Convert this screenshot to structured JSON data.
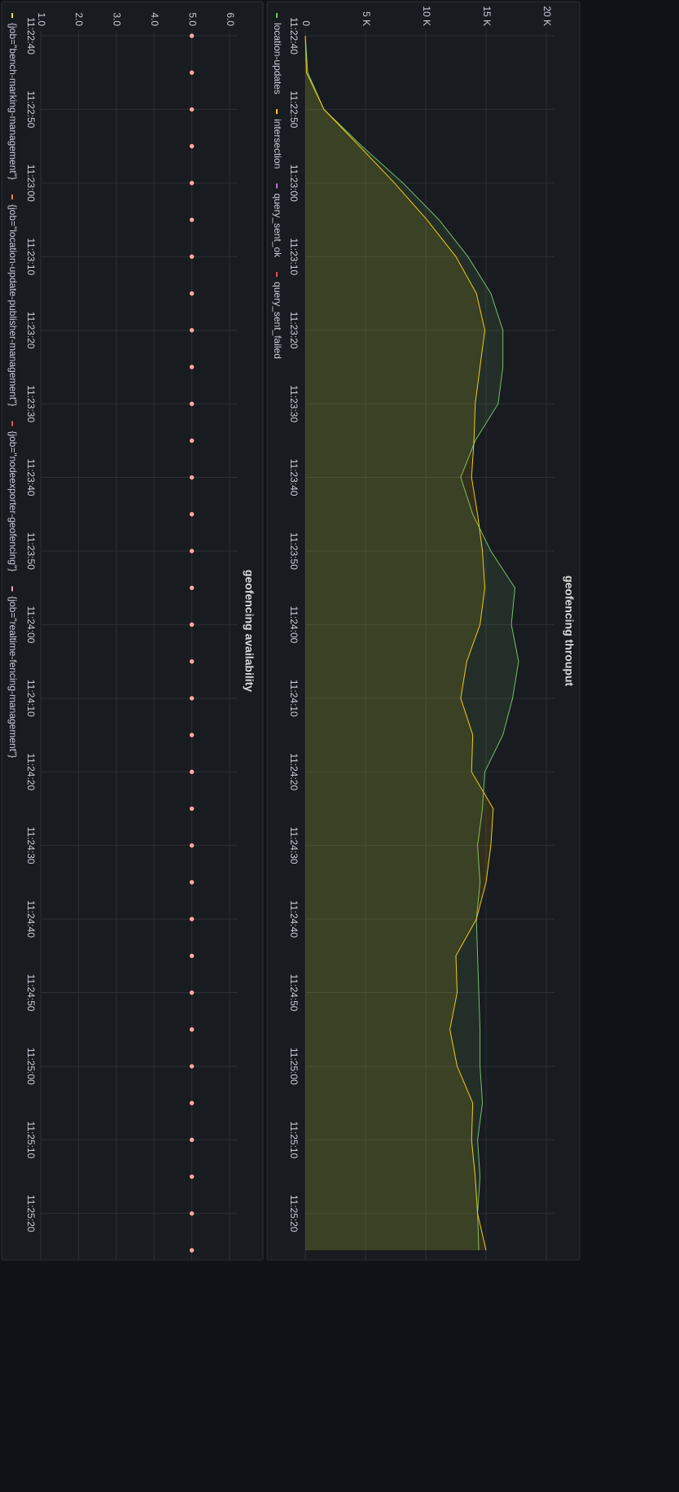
{
  "chart_data": [
    {
      "type": "area",
      "title": "geofencing throuput",
      "x": [
        "11:22:40",
        "11:22:45",
        "11:22:50",
        "11:22:55",
        "11:23:00",
        "11:23:05",
        "11:23:10",
        "11:23:15",
        "11:23:20",
        "11:23:25",
        "11:23:30",
        "11:23:35",
        "11:23:40",
        "11:23:45",
        "11:23:50",
        "11:23:55",
        "11:24:00",
        "11:24:05",
        "11:24:10",
        "11:24:15",
        "11:24:20",
        "11:24:25",
        "11:24:30",
        "11:24:35",
        "11:24:40",
        "11:24:45",
        "11:24:50",
        "11:24:55",
        "11:25:00",
        "11:25:05",
        "11:25:10",
        "11:25:15",
        "11:25:20",
        "11:25:25"
      ],
      "series": [
        {
          "name": "location-updates",
          "color": "#73bf69",
          "values": [
            0,
            200,
            1550,
            4700,
            8100,
            11100,
            13500,
            15400,
            16400,
            16400,
            16000,
            14100,
            12900,
            13900,
            15400,
            17400,
            17100,
            17700,
            17200,
            16400,
            14900,
            14700,
            14300,
            14500,
            14200,
            14300,
            14400,
            14500,
            14500,
            14700,
            14300,
            14500,
            14300,
            14400
          ]
        },
        {
          "name": "intersection",
          "color": "#f2cc0c",
          "values": [
            0,
            100,
            1550,
            4500,
            7400,
            10100,
            12500,
            14200,
            14900,
            14500,
            14100,
            14000,
            13800,
            14300,
            14700,
            14900,
            14500,
            13400,
            12900,
            13900,
            13800,
            15600,
            15400,
            15000,
            14200,
            12500,
            12600,
            12000,
            12600,
            13900,
            13800,
            14100,
            14300,
            15000
          ]
        },
        {
          "name": "query_sent_ok",
          "color": "#b877d9",
          "values": [
            null,
            null,
            null,
            null,
            null,
            null,
            null,
            null,
            null,
            null,
            null,
            null,
            null,
            null,
            null,
            null,
            null,
            null,
            null,
            null,
            null,
            null,
            null,
            null,
            null,
            null,
            null,
            null,
            null,
            null,
            null,
            null,
            null,
            null
          ]
        },
        {
          "name": "query_sent_failed",
          "color": "#f2495c",
          "values": [
            null,
            null,
            null,
            null,
            null,
            null,
            null,
            null,
            null,
            null,
            null,
            null,
            null,
            null,
            null,
            null,
            null,
            null,
            null,
            null,
            null,
            null,
            null,
            null,
            null,
            null,
            null,
            null,
            null,
            null,
            null,
            null,
            null,
            null
          ]
        }
      ],
      "xlim": [
        "11:22:40",
        "11:25:25"
      ],
      "xticks": [
        "11:22:40",
        "11:22:50",
        "11:23:00",
        "11:23:10",
        "11:23:20",
        "11:23:30",
        "11:23:40",
        "11:23:50",
        "11:24:00",
        "11:24:10",
        "11:24:20",
        "11:24:30",
        "11:24:40",
        "11:24:50",
        "11:25:00",
        "11:25:10",
        "11:25:20"
      ],
      "ylim": [
        0,
        20000
      ],
      "yticks": [
        0,
        {
          "value": 5000,
          "label": "5 K"
        },
        {
          "value": 10000,
          "label": "10 K"
        },
        {
          "value": 15000,
          "label": "15 K"
        },
        {
          "value": 20000,
          "label": "20 K"
        }
      ],
      "grid": true
    },
    {
      "type": "scatter",
      "title": "geofencing availability",
      "x": [
        "11:22:40",
        "11:22:45",
        "11:22:50",
        "11:22:55",
        "11:23:00",
        "11:23:05",
        "11:23:10",
        "11:23:15",
        "11:23:20",
        "11:23:25",
        "11:23:30",
        "11:23:35",
        "11:23:40",
        "11:23:45",
        "11:23:50",
        "11:23:55",
        "11:24:00",
        "11:24:05",
        "11:24:10",
        "11:24:15",
        "11:24:20",
        "11:24:25",
        "11:24:30",
        "11:24:35",
        "11:24:40",
        "11:24:45",
        "11:24:50",
        "11:24:55",
        "11:25:00",
        "11:25:05",
        "11:25:10",
        "11:25:15",
        "11:25:20",
        "11:25:25"
      ],
      "series": [
        {
          "name": "{job=\"bench-marking-management\"}",
          "color": "#fade2a",
          "values": [
            5,
            5,
            5,
            5,
            5,
            5,
            5,
            5,
            5,
            5,
            5,
            5,
            5,
            5,
            5,
            5,
            5,
            5,
            5,
            5,
            5,
            5,
            5,
            5,
            5,
            5,
            5,
            5,
            5,
            5,
            5,
            5,
            5,
            5
          ]
        },
        {
          "name": "{job=\"location-update-publisher-management\"}",
          "color": "#ff7a45",
          "values": [
            5,
            5,
            5,
            5,
            5,
            5,
            5,
            5,
            5,
            5,
            5,
            5,
            5,
            5,
            5,
            5,
            5,
            5,
            5,
            5,
            5,
            5,
            5,
            5,
            5,
            5,
            5,
            5,
            5,
            5,
            5,
            5,
            5,
            5
          ]
        },
        {
          "name": "{job=\"nodeexporter-geofencing\"}",
          "color": "#f2495c",
          "values": [
            5,
            5,
            5,
            5,
            5,
            5,
            5,
            5,
            5,
            5,
            5,
            5,
            5,
            5,
            5,
            5,
            5,
            5,
            5,
            5,
            5,
            5,
            5,
            5,
            5,
            5,
            5,
            5,
            5,
            5,
            5,
            5,
            5,
            5
          ]
        },
        {
          "name": "{job=\"realtime-fencing-management\"}",
          "color": "#ffa6b0",
          "values": [
            5,
            5,
            5,
            5,
            5,
            5,
            5,
            5,
            5,
            5,
            5,
            5,
            5,
            5,
            5,
            5,
            5,
            5,
            5,
            5,
            5,
            5,
            5,
            5,
            5,
            5,
            5,
            5,
            5,
            5,
            5,
            5,
            5,
            5
          ]
        }
      ],
      "xlim": [
        "11:22:40",
        "11:25:25"
      ],
      "xticks": [
        "11:22:40",
        "11:22:50",
        "11:23:00",
        "11:23:10",
        "11:23:20",
        "11:23:30",
        "11:23:40",
        "11:23:50",
        "11:24:00",
        "11:24:10",
        "11:24:20",
        "11:24:30",
        "11:24:40",
        "11:24:50",
        "11:25:00",
        "11:25:10",
        "11:25:20"
      ],
      "ylim": [
        1,
        6
      ],
      "yticks": [
        {
          "value": 1,
          "label": "1.0"
        },
        {
          "value": 2,
          "label": "2.0"
        },
        {
          "value": 3,
          "label": "3.0"
        },
        {
          "value": 4,
          "label": "4.0"
        },
        {
          "value": 5,
          "label": "5.0"
        },
        {
          "value": 6,
          "label": "6.0"
        }
      ],
      "grid": true
    }
  ]
}
